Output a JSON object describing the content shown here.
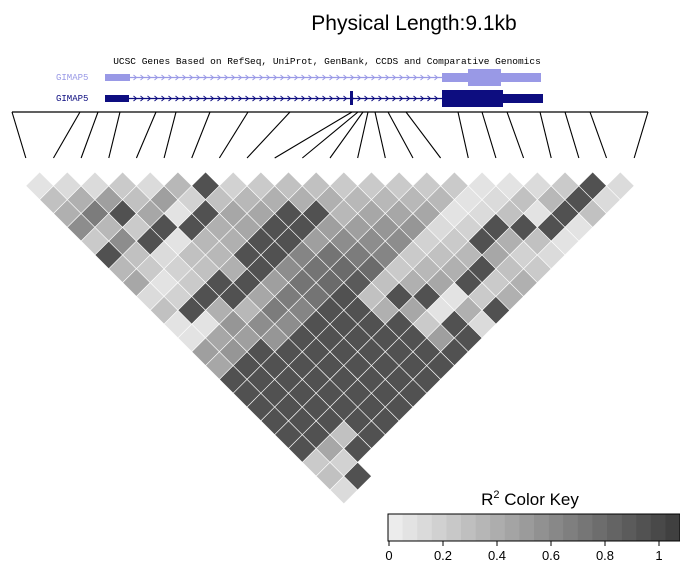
{
  "title": "Physical Length:9.1kb",
  "track": {
    "title": "UCSC Genes Based on RefSeq, UniProt, GenBank, CCDS and Comparative Genomics",
    "genes": [
      {
        "label": "GIMAP5",
        "color": "#9999e6"
      },
      {
        "label": "GIMAP5",
        "color": "#0d0d80"
      }
    ]
  },
  "color_key": {
    "title_main": "R",
    "title_sup": "2",
    "title_rest": " Color Key",
    "ticks": [
      "0",
      "0.2",
      "0.4",
      "0.6",
      "0.8",
      "1"
    ],
    "low_color": "#ececec",
    "high_color": "#404040"
  },
  "chart_data": {
    "type": "heatmap",
    "description_metric": "R2",
    "snp_count": 23,
    "r2_matrix_rows": [
      [
        0.05,
        0.25,
        0.35,
        0.55,
        0.2,
        0.9,
        0.3,
        0.4,
        0.1,
        0.25,
        0.05,
        0.05,
        0.45,
        0.4,
        0.9,
        0.9,
        0.9,
        0.9,
        0.9,
        0.9,
        0.2,
        0.25,
        0.1
      ],
      [
        0.1,
        0.35,
        0.65,
        0.3,
        0.55,
        0.25,
        0.2,
        0.05,
        0.15,
        0.9,
        0.05,
        0.4,
        0.5,
        0.9,
        0.9,
        0.9,
        0.9,
        0.9,
        0.9,
        0.4,
        0.15,
        0.9
      ],
      [
        0.1,
        0.45,
        0.9,
        0.2,
        0.9,
        0.1,
        0.15,
        0.2,
        0.9,
        0.35,
        0.5,
        0.45,
        0.9,
        0.9,
        0.9,
        0.9,
        0.9,
        0.9,
        0.25,
        0.9
      ],
      [
        0.2,
        0.25,
        0.4,
        0.9,
        0.05,
        0.25,
        0.25,
        0.9,
        0.9,
        0.3,
        0.55,
        0.5,
        0.9,
        0.9,
        0.9,
        0.9,
        0.9,
        0.9,
        0.9
      ],
      [
        0.1,
        0.45,
        0.05,
        0.9,
        0.3,
        0.3,
        0.35,
        0.9,
        0.4,
        0.65,
        0.55,
        0.9,
        0.9,
        0.9,
        0.9,
        0.9,
        0.9,
        0.9
      ],
      [
        0.3,
        0.15,
        0.9,
        0.35,
        0.35,
        0.9,
        0.9,
        0.45,
        0.65,
        0.6,
        0.9,
        0.9,
        0.9,
        0.9,
        0.9,
        0.9,
        0.9
      ],
      [
        0.9,
        0.25,
        0.4,
        0.4,
        0.9,
        0.9,
        0.55,
        0.7,
        0.7,
        0.9,
        0.9,
        0.9,
        0.9,
        0.9,
        0.9,
        0.9
      ],
      [
        0.15,
        0.3,
        0.4,
        0.9,
        0.9,
        0.6,
        0.7,
        0.75,
        0.9,
        0.9,
        0.9,
        0.9,
        0.9,
        0.9,
        0.9
      ],
      [
        0.2,
        0.35,
        0.9,
        0.9,
        0.45,
        0.7,
        0.75,
        0.85,
        0.25,
        0.35,
        0.9,
        0.9,
        0.9,
        0.9
      ],
      [
        0.25,
        0.35,
        0.9,
        0.45,
        0.55,
        0.65,
        0.75,
        0.25,
        0.9,
        0.4,
        0.2,
        0.45,
        0.9
      ],
      [
        0.25,
        0.35,
        0.3,
        0.45,
        0.55,
        0.6,
        0.2,
        0.35,
        0.9,
        0.05,
        0.9,
        0.9
      ],
      [
        0.2,
        0.3,
        0.4,
        0.5,
        0.55,
        0.2,
        0.3,
        0.4,
        0.05,
        0.35,
        0.1
      ],
      [
        0.2,
        0.3,
        0.4,
        0.5,
        0.15,
        0.25,
        0.35,
        0.9,
        0.2,
        0.9
      ],
      [
        0.2,
        0.3,
        0.4,
        0.1,
        0.2,
        0.3,
        0.9,
        0.2,
        0.35
      ],
      [
        0.2,
        0.3,
        0.05,
        0.15,
        0.9,
        0.4,
        0.25,
        0.35
      ],
      [
        0.2,
        0.05,
        0.1,
        0.9,
        0.35,
        0.15,
        0.2
      ],
      [
        0.05,
        0.1,
        0.25,
        0.9,
        0.25,
        0.1
      ],
      [
        0.05,
        0.25,
        0.05,
        0.9,
        0.05
      ],
      [
        0.1,
        0.3,
        0.9,
        0.05
      ],
      [
        0.2,
        0.9,
        0.25
      ],
      [
        0.9,
        0.1
      ],
      [
        0.1
      ]
    ]
  }
}
